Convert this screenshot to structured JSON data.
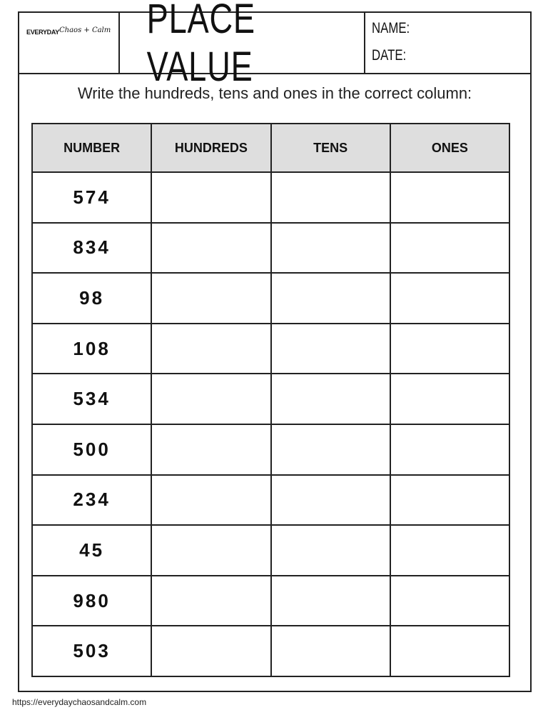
{
  "header": {
    "logo_text": "EVERYDAY Chaos + Calm",
    "logo_part1": "EVERYDAY",
    "logo_part2": "Chaos + Calm",
    "title": "PLACE VALUE",
    "name_label": "NAME:",
    "date_label": "DATE:"
  },
  "instruction": "Write the hundreds, tens and ones in the correct column:",
  "table": {
    "columns": [
      "NUMBER",
      "HUNDREDS",
      "TENS",
      "ONES"
    ],
    "rows": [
      "574",
      "834",
      "98",
      "108",
      "534",
      "500",
      "234",
      "45",
      "980",
      "503"
    ]
  },
  "footer": {
    "url": "https://everydaychaosandcalm.com"
  },
  "colors": {
    "header_fill": "#dedede",
    "border": "#222222"
  }
}
